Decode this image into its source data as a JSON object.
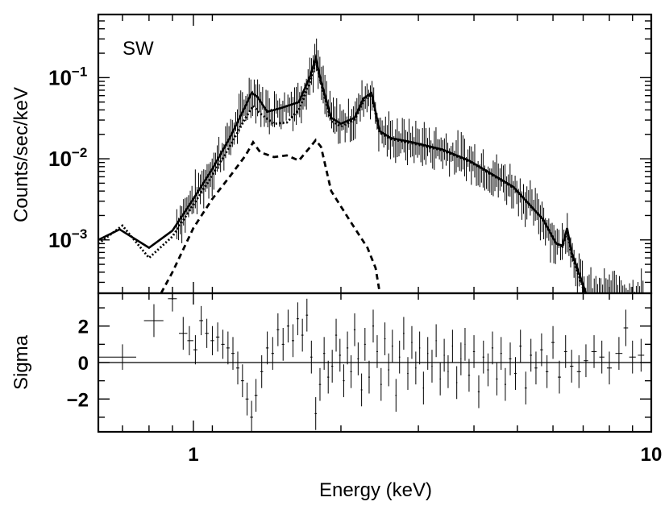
{
  "chart_data": [
    {
      "type": "line",
      "panel": "spectrum",
      "title": "SW",
      "xlabel": "Energy (keV)",
      "ylabel": "Counts/sec/keV",
      "xscale": "log",
      "yscale": "log",
      "xlim": [
        0.62,
        10
      ],
      "ylim": [
        0.00022,
        0.6
      ],
      "ytick_labels": [
        {
          "value": 0.1,
          "base": "10",
          "exp": "−1"
        },
        {
          "value": 0.01,
          "base": "10",
          "exp": "−2"
        },
        {
          "value": 0.001,
          "base": "10",
          "exp": "−3"
        }
      ],
      "series": [
        {
          "style": "solid",
          "x": [
            0.62,
            0.69,
            0.8,
            0.9,
            1.0,
            1.1,
            1.2,
            1.3,
            1.34,
            1.38,
            1.45,
            1.55,
            1.7,
            1.8,
            1.85,
            1.9,
            2.0,
            2.1,
            2.25,
            2.35,
            2.45,
            2.55,
            2.7,
            3.0,
            3.5,
            4.0,
            5.0,
            5.8,
            6.2,
            6.4,
            6.55,
            6.7,
            7.0,
            7.2
          ],
          "y": [
            0.001,
            0.00135,
            0.0008,
            0.0013,
            0.0032,
            0.0075,
            0.018,
            0.045,
            0.065,
            0.058,
            0.038,
            0.042,
            0.05,
            0.105,
            0.175,
            0.09,
            0.032,
            0.027,
            0.032,
            0.055,
            0.065,
            0.022,
            0.018,
            0.016,
            0.013,
            0.0095,
            0.0045,
            0.0018,
            0.0009,
            0.00085,
            0.0014,
            0.0007,
            0.00035,
            0.00022
          ]
        },
        {
          "style": "dotted",
          "x": [
            0.62,
            0.7,
            0.8,
            0.9,
            1.0,
            1.1,
            1.2,
            1.3,
            1.35,
            1.4,
            1.5,
            1.6,
            1.7,
            1.8,
            1.85,
            1.9,
            2.0,
            2.1,
            2.25,
            2.35,
            2.45,
            2.55,
            2.7,
            3.0,
            3.5,
            4.0,
            5.0,
            5.8,
            6.2,
            6.4,
            6.55,
            6.7,
            7.0,
            7.2
          ],
          "y": [
            0.0009,
            0.0015,
            0.0006,
            0.0011,
            0.0027,
            0.0063,
            0.014,
            0.032,
            0.045,
            0.036,
            0.027,
            0.028,
            0.04,
            0.09,
            0.165,
            0.085,
            0.029,
            0.025,
            0.03,
            0.052,
            0.062,
            0.021,
            0.0175,
            0.0155,
            0.0127,
            0.0093,
            0.0044,
            0.0018,
            0.0009,
            0.00083,
            0.0013,
            0.00065,
            0.00032,
            0.0002
          ]
        },
        {
          "style": "dashed",
          "x": [
            0.85,
            0.9,
            1.0,
            1.1,
            1.2,
            1.3,
            1.35,
            1.4,
            1.5,
            1.6,
            1.7,
            1.8,
            1.85,
            1.9,
            2.0,
            2.2,
            2.4,
            2.5,
            2.55
          ],
          "y": [
            0.00022,
            0.0004,
            0.0014,
            0.0032,
            0.006,
            0.011,
            0.016,
            0.012,
            0.0105,
            0.011,
            0.0095,
            0.014,
            0.017,
            0.014,
            0.004,
            0.0017,
            0.0008,
            0.00045,
            0.00023
          ]
        }
      ]
    },
    {
      "type": "scatter",
      "panel": "residuals",
      "xlabel": "Energy (keV)",
      "ylabel": "Sigma",
      "xscale": "log",
      "xlim": [
        0.62,
        10
      ],
      "ylim": [
        -3.8,
        3.8
      ],
      "xtick_labels": [
        {
          "value": 1,
          "label": "1"
        },
        {
          "value": 10,
          "label": "10"
        }
      ],
      "ytick_labels": [
        {
          "value": 2,
          "label": "2"
        },
        {
          "value": 0,
          "label": "0"
        },
        {
          "value": -2,
          "label": "−2"
        }
      ],
      "zero_line": 0,
      "points": [
        {
          "x": 0.7,
          "xlo": 0.62,
          "xhi": 0.75,
          "y": 0.3,
          "err": 0.7
        },
        {
          "x": 0.82,
          "xlo": 0.78,
          "xhi": 0.86,
          "y": 2.3,
          "err": 0.9
        },
        {
          "x": 0.9,
          "xlo": 0.88,
          "xhi": 0.92,
          "y": 3.5,
          "err": 0.7
        },
        {
          "x": 0.95,
          "xlo": 0.93,
          "xhi": 0.97,
          "y": 1.6,
          "err": 0.9
        },
        {
          "x": 0.98,
          "xlo": 0.97,
          "xhi": 1.0,
          "y": 1.2,
          "err": 0.8
        },
        {
          "x": 1.01,
          "xlo": 1.0,
          "xhi": 1.02,
          "y": 0.7,
          "err": 0.8
        },
        {
          "x": 1.04,
          "xlo": 1.03,
          "xhi": 1.05,
          "y": 2.3,
          "err": 0.8
        },
        {
          "x": 1.07,
          "xlo": 1.06,
          "xhi": 1.08,
          "y": 1.6,
          "err": 0.8
        },
        {
          "x": 1.1,
          "xlo": 1.09,
          "xhi": 1.11,
          "y": 1.2,
          "err": 0.8
        },
        {
          "x": 1.13,
          "xlo": 1.12,
          "xhi": 1.14,
          "y": 1.4,
          "err": 0.8
        },
        {
          "x": 1.16,
          "xlo": 1.15,
          "xhi": 1.17,
          "y": 1.0,
          "err": 0.8
        },
        {
          "x": 1.19,
          "xlo": 1.18,
          "xhi": 1.2,
          "y": 0.8,
          "err": 0.9
        },
        {
          "x": 1.22,
          "xlo": 1.21,
          "xhi": 1.23,
          "y": 0.5,
          "err": 0.9
        },
        {
          "x": 1.25,
          "xlo": 1.24,
          "xhi": 1.26,
          "y": -0.3,
          "err": 0.9
        },
        {
          "x": 1.28,
          "xlo": 1.27,
          "xhi": 1.29,
          "y": -1.0,
          "err": 0.9
        },
        {
          "x": 1.31,
          "xlo": 1.3,
          "xhi": 1.32,
          "y": -2.0,
          "err": 0.9
        },
        {
          "x": 1.34,
          "xlo": 1.33,
          "xhi": 1.35,
          "y": -3.0,
          "err": 0.9
        },
        {
          "x": 1.37,
          "xlo": 1.36,
          "xhi": 1.38,
          "y": -1.8,
          "err": 0.9
        },
        {
          "x": 1.41,
          "xlo": 1.4,
          "xhi": 1.42,
          "y": -0.5,
          "err": 0.9
        },
        {
          "x": 1.45,
          "xlo": 1.44,
          "xhi": 1.46,
          "y": 0.8,
          "err": 0.9
        },
        {
          "x": 1.49,
          "xlo": 1.48,
          "xhi": 1.5,
          "y": 0.5,
          "err": 0.9
        },
        {
          "x": 1.53,
          "xlo": 1.52,
          "xhi": 1.54,
          "y": 1.8,
          "err": 0.9
        },
        {
          "x": 1.57,
          "xlo": 1.56,
          "xhi": 1.58,
          "y": 1.0,
          "err": 0.9
        },
        {
          "x": 1.61,
          "xlo": 1.6,
          "xhi": 1.62,
          "y": 2.0,
          "err": 0.9
        },
        {
          "x": 1.65,
          "xlo": 1.64,
          "xhi": 1.66,
          "y": 1.2,
          "err": 0.9
        },
        {
          "x": 1.69,
          "xlo": 1.68,
          "xhi": 1.7,
          "y": 2.4,
          "err": 0.9
        },
        {
          "x": 1.73,
          "xlo": 1.72,
          "xhi": 1.74,
          "y": 1.5,
          "err": 0.9
        },
        {
          "x": 1.77,
          "xlo": 1.76,
          "xhi": 1.78,
          "y": 2.6,
          "err": 0.9
        },
        {
          "x": 1.81,
          "xlo": 1.8,
          "xhi": 1.82,
          "y": 0.3,
          "err": 0.9
        },
        {
          "x": 1.85,
          "xlo": 1.84,
          "xhi": 1.86,
          "y": -2.8,
          "err": 0.9
        },
        {
          "x": 1.89,
          "xlo": 1.88,
          "xhi": 1.9,
          "y": -1.2,
          "err": 0.9
        },
        {
          "x": 1.93,
          "xlo": 1.92,
          "xhi": 1.94,
          "y": 0.5,
          "err": 0.9
        },
        {
          "x": 1.97,
          "xlo": 1.96,
          "xhi": 1.98,
          "y": -0.8,
          "err": 0.9
        },
        {
          "x": 2.01,
          "xlo": 2.0,
          "xhi": 2.02,
          "y": -0.2,
          "err": 0.9
        },
        {
          "x": 2.05,
          "xlo": 2.04,
          "xhi": 2.06,
          "y": 1.5,
          "err": 0.9
        },
        {
          "x": 2.09,
          "xlo": 2.08,
          "xhi": 2.1,
          "y": 0.4,
          "err": 0.9
        },
        {
          "x": 2.13,
          "xlo": 2.12,
          "xhi": 2.14,
          "y": -1.0,
          "err": 0.9
        },
        {
          "x": 2.17,
          "xlo": 2.16,
          "xhi": 2.18,
          "y": 0.8,
          "err": 0.9
        },
        {
          "x": 2.21,
          "xlo": 2.2,
          "xhi": 2.22,
          "y": -0.5,
          "err": 0.9
        },
        {
          "x": 2.25,
          "xlo": 2.24,
          "xhi": 2.26,
          "y": 1.8,
          "err": 0.9
        },
        {
          "x": 2.29,
          "xlo": 2.28,
          "xhi": 2.3,
          "y": 0.2,
          "err": 0.9
        },
        {
          "x": 2.33,
          "xlo": 2.32,
          "xhi": 2.34,
          "y": -1.5,
          "err": 0.9
        },
        {
          "x": 2.37,
          "xlo": 2.36,
          "xhi": 2.38,
          "y": 1.0,
          "err": 0.9
        },
        {
          "x": 2.42,
          "xlo": 2.41,
          "xhi": 2.43,
          "y": -0.8,
          "err": 0.9
        },
        {
          "x": 2.47,
          "xlo": 2.46,
          "xhi": 2.48,
          "y": 2.0,
          "err": 0.9
        },
        {
          "x": 2.52,
          "xlo": 2.51,
          "xhi": 2.53,
          "y": 0.6,
          "err": 0.9
        },
        {
          "x": 2.57,
          "xlo": 2.56,
          "xhi": 2.58,
          "y": -1.2,
          "err": 0.9
        },
        {
          "x": 2.62,
          "xlo": 2.61,
          "xhi": 2.63,
          "y": 1.3,
          "err": 0.9
        },
        {
          "x": 2.67,
          "xlo": 2.66,
          "xhi": 2.68,
          "y": -0.4,
          "err": 0.9
        },
        {
          "x": 2.72,
          "xlo": 2.71,
          "xhi": 2.73,
          "y": 0.9,
          "err": 0.9
        },
        {
          "x": 2.77,
          "xlo": 2.76,
          "xhi": 2.78,
          "y": -1.8,
          "err": 0.9
        },
        {
          "x": 2.82,
          "xlo": 2.81,
          "xhi": 2.83,
          "y": 0.3,
          "err": 0.9
        },
        {
          "x": 2.88,
          "xlo": 2.87,
          "xhi": 2.89,
          "y": 1.6,
          "err": 0.9
        },
        {
          "x": 2.94,
          "xlo": 2.93,
          "xhi": 2.95,
          "y": -0.6,
          "err": 0.9
        },
        {
          "x": 3.0,
          "xlo": 2.99,
          "xhi": 3.01,
          "y": 1.1,
          "err": 0.9
        },
        {
          "x": 3.06,
          "xlo": 3.05,
          "xhi": 3.07,
          "y": -0.3,
          "err": 0.9
        },
        {
          "x": 3.12,
          "xlo": 3.11,
          "xhi": 3.13,
          "y": 0.8,
          "err": 0.9
        },
        {
          "x": 3.18,
          "xlo": 3.17,
          "xhi": 3.19,
          "y": -1.4,
          "err": 0.9
        },
        {
          "x": 3.25,
          "xlo": 3.24,
          "xhi": 3.26,
          "y": 0.5,
          "err": 0.9
        },
        {
          "x": 3.32,
          "xlo": 3.31,
          "xhi": 3.33,
          "y": -0.2,
          "err": 0.9
        },
        {
          "x": 3.39,
          "xlo": 3.38,
          "xhi": 3.4,
          "y": 1.2,
          "err": 0.9
        },
        {
          "x": 3.46,
          "xlo": 3.45,
          "xhi": 3.47,
          "y": -0.9,
          "err": 0.9
        },
        {
          "x": 3.53,
          "xlo": 3.52,
          "xhi": 3.54,
          "y": 0.4,
          "err": 0.9
        },
        {
          "x": 3.6,
          "xlo": 3.59,
          "xhi": 3.61,
          "y": -0.5,
          "err": 0.9
        },
        {
          "x": 3.68,
          "xlo": 3.67,
          "xhi": 3.69,
          "y": 0.9,
          "err": 0.9
        },
        {
          "x": 3.76,
          "xlo": 3.75,
          "xhi": 3.77,
          "y": -1.1,
          "err": 0.9
        },
        {
          "x": 3.84,
          "xlo": 3.83,
          "xhi": 3.85,
          "y": 0.2,
          "err": 0.9
        },
        {
          "x": 3.92,
          "xlo": 3.91,
          "xhi": 3.93,
          "y": 1.0,
          "err": 0.9
        },
        {
          "x": 4.0,
          "xlo": 3.98,
          "xhi": 4.02,
          "y": -0.7,
          "err": 0.9
        },
        {
          "x": 4.1,
          "xlo": 4.08,
          "xhi": 4.12,
          "y": 0.6,
          "err": 0.9
        },
        {
          "x": 4.2,
          "xlo": 4.18,
          "xhi": 4.22,
          "y": -1.6,
          "err": 0.9
        },
        {
          "x": 4.3,
          "xlo": 4.28,
          "xhi": 4.32,
          "y": 0.3,
          "err": 0.9
        },
        {
          "x": 4.4,
          "xlo": 4.38,
          "xhi": 4.42,
          "y": -0.4,
          "err": 0.9
        },
        {
          "x": 4.5,
          "xlo": 4.48,
          "xhi": 4.52,
          "y": 0.8,
          "err": 0.9
        },
        {
          "x": 4.6,
          "xlo": 4.58,
          "xhi": 4.62,
          "y": -0.9,
          "err": 0.9
        },
        {
          "x": 4.7,
          "xlo": 4.68,
          "xhi": 4.72,
          "y": 0.5,
          "err": 0.9
        },
        {
          "x": 4.8,
          "xlo": 4.78,
          "xhi": 4.82,
          "y": -1.2,
          "err": 0.9
        },
        {
          "x": 4.92,
          "xlo": 4.89,
          "xhi": 4.95,
          "y": 0.2,
          "err": 0.9
        },
        {
          "x": 5.05,
          "xlo": 5.02,
          "xhi": 5.08,
          "y": -0.6,
          "err": 0.9
        },
        {
          "x": 5.18,
          "xlo": 5.15,
          "xhi": 5.21,
          "y": 0.9,
          "err": 0.9
        },
        {
          "x": 5.32,
          "xlo": 5.29,
          "xhi": 5.35,
          "y": -1.4,
          "err": 0.9
        },
        {
          "x": 5.46,
          "xlo": 5.43,
          "xhi": 5.49,
          "y": 0.4,
          "err": 0.9
        },
        {
          "x": 5.6,
          "xlo": 5.56,
          "xhi": 5.64,
          "y": -0.3,
          "err": 0.9
        },
        {
          "x": 5.76,
          "xlo": 5.72,
          "xhi": 5.8,
          "y": 0.7,
          "err": 0.9
        },
        {
          "x": 5.92,
          "xlo": 5.88,
          "xhi": 5.96,
          "y": -0.5,
          "err": 0.9
        },
        {
          "x": 6.1,
          "xlo": 6.05,
          "xhi": 6.15,
          "y": 1.1,
          "err": 0.9
        },
        {
          "x": 6.3,
          "xlo": 6.25,
          "xhi": 6.35,
          "y": -0.8,
          "err": 0.9
        },
        {
          "x": 6.5,
          "xlo": 6.45,
          "xhi": 6.55,
          "y": 0.6,
          "err": 0.9
        },
        {
          "x": 6.7,
          "xlo": 6.64,
          "xhi": 6.76,
          "y": -0.2,
          "err": 0.9
        },
        {
          "x": 6.95,
          "xlo": 6.88,
          "xhi": 7.02,
          "y": -0.5,
          "err": 0.9
        },
        {
          "x": 7.2,
          "xlo": 7.12,
          "xhi": 7.28,
          "y": 0.1,
          "err": 0.9
        },
        {
          "x": 7.5,
          "xlo": 7.4,
          "xhi": 7.6,
          "y": 0.6,
          "err": 0.9
        },
        {
          "x": 7.8,
          "xlo": 7.7,
          "xhi": 7.9,
          "y": 0.3,
          "err": 0.9
        },
        {
          "x": 8.1,
          "xlo": 8.0,
          "xhi": 8.2,
          "y": -0.3,
          "err": 0.9
        },
        {
          "x": 8.5,
          "xlo": 8.35,
          "xhi": 8.65,
          "y": 0.5,
          "err": 0.9
        },
        {
          "x": 8.8,
          "xlo": 8.7,
          "xhi": 8.9,
          "y": 1.9,
          "err": 1.0
        },
        {
          "x": 9.1,
          "xlo": 8.95,
          "xhi": 9.25,
          "y": 0.3,
          "err": 0.9
        },
        {
          "x": 9.5,
          "xlo": 9.35,
          "xhi": 9.65,
          "y": 0.4,
          "err": 0.9
        }
      ]
    }
  ]
}
